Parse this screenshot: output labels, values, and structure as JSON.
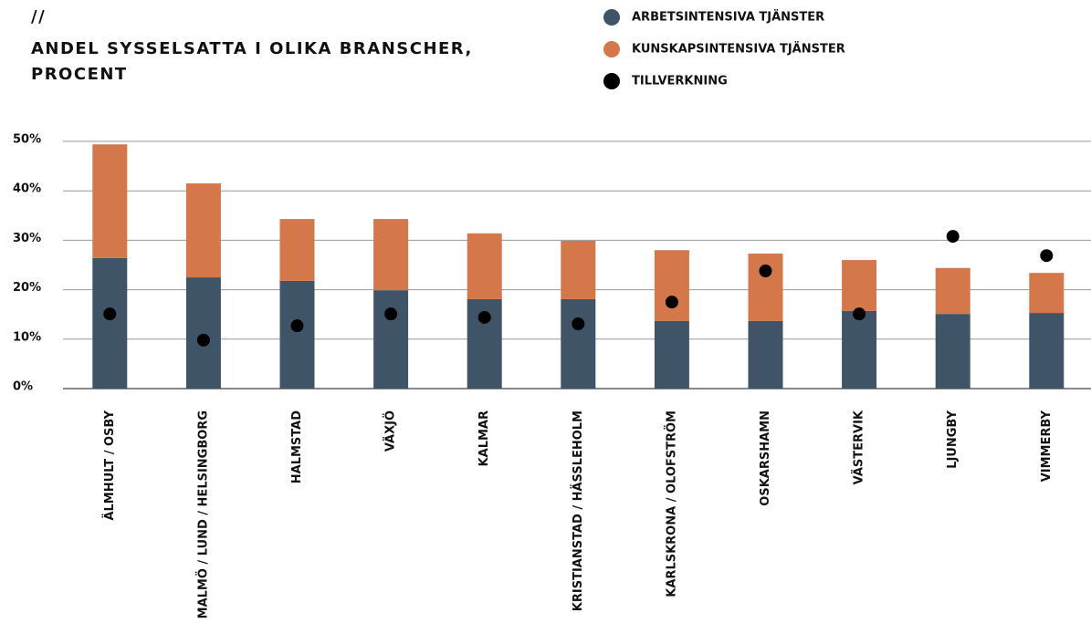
{
  "chart_data": {
    "type": "stacked_bar_with_dots",
    "title_mark": "//",
    "title": "ANDEL SYSSELSATTA I OLIKA BRANSCHER, PROCENT",
    "categories": [
      "ÄLMHULT / OSBY",
      "MALMÖ / LUND / HELSINGBORG",
      "HALMSTAD",
      "VÄXJÖ",
      "KALMAR",
      "KRISTIANSTAD / HÄSSLEHOLM",
      "KARLSKRONA / OLOFSTRÖM",
      "OSKARSHAMN",
      "VÄSTERVIK",
      "LJUNGBY",
      "VIMMERBY"
    ],
    "series": [
      {
        "name": "ARBETSINTENSIVA TJÄNSTER",
        "color": "#3f5467",
        "kind": "bar",
        "values": [
          26.4,
          22.5,
          21.8,
          19.9,
          18.1,
          18.1,
          13.7,
          13.7,
          15.7,
          15.1,
          15.3
        ]
      },
      {
        "name": "KUNSKAPSINTENSIVA TJÄNSTER",
        "color": "#d4774b",
        "kind": "bar",
        "values": [
          23.0,
          19.0,
          12.5,
          14.4,
          13.3,
          11.8,
          14.3,
          13.6,
          10.3,
          9.3,
          8.1
        ]
      },
      {
        "name": "TILLVERKNING",
        "color": "#000000",
        "kind": "dot",
        "values": [
          15.1,
          9.8,
          12.7,
          15.1,
          14.4,
          13.1,
          17.5,
          23.8,
          15.1,
          30.8,
          26.9
        ]
      }
    ],
    "ylim": [
      0,
      50
    ],
    "yticks": [
      {
        "value": 0,
        "label": "0%"
      },
      {
        "value": 10,
        "label": "10%"
      },
      {
        "value": 20,
        "label": "20%"
      },
      {
        "value": 30,
        "label": "30%"
      },
      {
        "value": 40,
        "label": "40%"
      },
      {
        "value": 50,
        "label": "50%"
      }
    ],
    "grid": true
  }
}
